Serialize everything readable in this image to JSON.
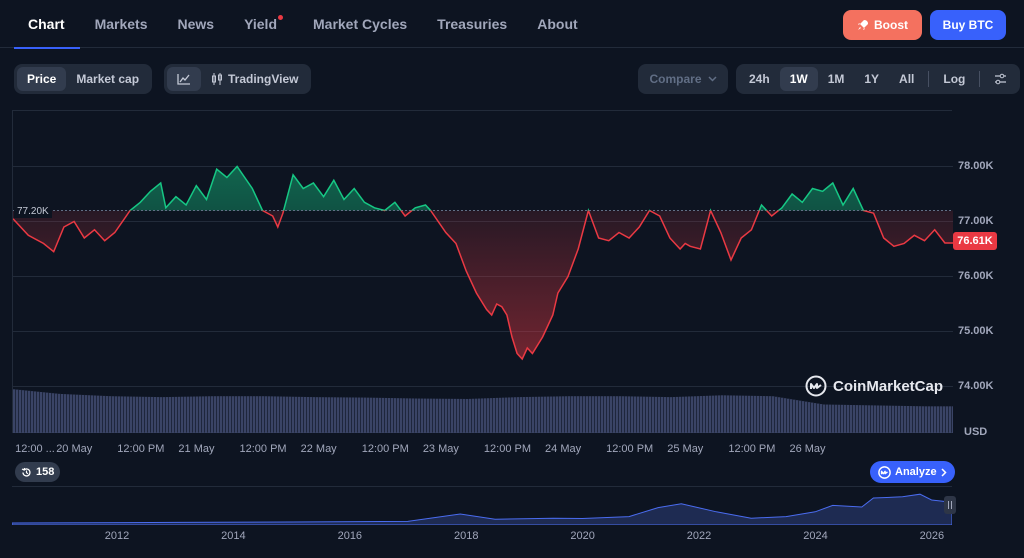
{
  "nav": {
    "tabs": [
      {
        "label": "Chart",
        "active": true
      },
      {
        "label": "Markets"
      },
      {
        "label": "News"
      },
      {
        "label": "Yield",
        "dot": true
      },
      {
        "label": "Market Cycles"
      },
      {
        "label": "Treasuries"
      },
      {
        "label": "About"
      }
    ],
    "boost_label": "Boost",
    "buy_label": "Buy BTC"
  },
  "toolbar": {
    "price_label": "Price",
    "market_cap_label": "Market cap",
    "tradingview_label": "TradingView",
    "compare_label": "Compare",
    "ranges": [
      "24h",
      "1W",
      "1M",
      "1Y",
      "All"
    ],
    "active_range": "1W",
    "log_label": "Log"
  },
  "chart": {
    "reference_price_label": "77.20K",
    "last_price_label": "76.61K",
    "watermark": "CoinMarketCap",
    "volume_unit": "USD",
    "colors": {
      "up": "#16c784",
      "down": "#ea3943",
      "volume": "#3a4466",
      "accent": "#3861fb"
    }
  },
  "chart_data": {
    "type": "area",
    "title": "",
    "xlabel": "",
    "ylabel": "",
    "baseline": 77.2,
    "ylim": [
      73.5,
      78.7
    ],
    "y_ticks": [
      "78.00K",
      "77.00K",
      "76.00K",
      "75.00K",
      "74.00K"
    ],
    "y_tick_values": [
      78,
      77,
      76,
      75,
      74
    ],
    "x_ticks": [
      "12:00 ...",
      "20 May",
      "12:00 PM",
      "21 May",
      "12:00 PM",
      "22 May",
      "12:00 PM",
      "23 May",
      "12:00 PM",
      "24 May",
      "12:00 PM",
      "25 May",
      "12:00 PM",
      "26 May"
    ],
    "x_tick_hours": [
      12,
      24,
      36,
      48,
      60,
      72,
      84,
      96,
      108,
      120,
      132,
      144,
      156,
      168
    ],
    "x_range_hours": [
      11,
      195.6
    ],
    "series": [
      {
        "values_hours": [
          11,
          14,
          17,
          19,
          21,
          23,
          25,
          27,
          29,
          31,
          34,
          36,
          38,
          40,
          41,
          43,
          45,
          47,
          49,
          51,
          53,
          55,
          58,
          60,
          62,
          63,
          64,
          66,
          68,
          70,
          72,
          74,
          76,
          78,
          80,
          82,
          84,
          86,
          88,
          90,
          92,
          93,
          96,
          98,
          100,
          102,
          104,
          105,
          106,
          107,
          108,
          109,
          110,
          111,
          112,
          113,
          115,
          116,
          117,
          118,
          120,
          122,
          124,
          126,
          128,
          130,
          132,
          134,
          136,
          138,
          140,
          142,
          143,
          144,
          146,
          148,
          150,
          152,
          154,
          156,
          158,
          160,
          162,
          164,
          166,
          168,
          170,
          172,
          174,
          176,
          178,
          180,
          182,
          184,
          186,
          188,
          190,
          192,
          194,
          195.6
        ],
        "values": [
          77.05,
          76.75,
          76.6,
          76.45,
          76.9,
          77.0,
          76.7,
          76.85,
          76.65,
          76.8,
          77.2,
          77.35,
          77.55,
          77.7,
          77.25,
          77.45,
          77.3,
          77.65,
          77.4,
          77.95,
          77.8,
          78.0,
          77.6,
          77.2,
          77.1,
          76.9,
          77.15,
          77.85,
          77.6,
          77.7,
          77.45,
          77.75,
          77.4,
          77.6,
          77.35,
          77.25,
          77.2,
          77.35,
          77.1,
          77.25,
          77.3,
          77.2,
          76.8,
          76.6,
          76.1,
          75.7,
          75.4,
          75.3,
          75.5,
          75.45,
          75.3,
          74.9,
          74.6,
          74.5,
          74.7,
          74.6,
          74.9,
          75.1,
          75.3,
          75.7,
          76.0,
          76.5,
          77.2,
          76.7,
          76.65,
          76.8,
          76.7,
          76.9,
          77.2,
          77.1,
          76.7,
          76.5,
          76.6,
          76.55,
          76.5,
          77.2,
          76.8,
          76.3,
          76.7,
          76.85,
          77.3,
          77.1,
          77.25,
          77.5,
          77.35,
          77.6,
          77.55,
          77.7,
          77.3,
          77.6,
          77.2,
          77.15,
          76.7,
          76.55,
          76.6,
          76.75,
          76.65,
          76.85,
          76.61,
          76.61
        ]
      }
    ],
    "volume": {
      "values_hours": [
        11,
        20,
        30,
        40,
        50,
        60,
        70,
        80,
        90,
        100,
        110,
        120,
        130,
        140,
        150,
        160,
        170,
        180,
        190,
        195.6
      ],
      "values": [
        0.95,
        0.85,
        0.8,
        0.78,
        0.8,
        0.8,
        0.78,
        0.77,
        0.75,
        0.74,
        0.78,
        0.8,
        0.8,
        0.78,
        0.82,
        0.8,
        0.62,
        0.6,
        0.58,
        0.58
      ]
    },
    "navigator": {
      "x_ticks": [
        "2012",
        "2014",
        "2016",
        "2018",
        "2020",
        "2022",
        "2024",
        "2026"
      ],
      "x_tick_years": [
        2012,
        2014,
        2016,
        2018,
        2020,
        2022,
        2024,
        2026
      ],
      "x_range_years": [
        2010.2,
        2026.35
      ],
      "years": [
        2010.2,
        2013,
        2015,
        2017.0,
        2017.9,
        2018.5,
        2019.5,
        2020.0,
        2020.8,
        2021.3,
        2021.7,
        2022.3,
        2022.9,
        2023.5,
        2024.0,
        2024.3,
        2024.8,
        2025.0,
        2025.5,
        2025.8,
        2026.0,
        2026.35
      ],
      "values": [
        0.0,
        0.02,
        0.03,
        0.05,
        0.28,
        0.12,
        0.15,
        0.14,
        0.2,
        0.48,
        0.6,
        0.35,
        0.15,
        0.2,
        0.35,
        0.55,
        0.5,
        0.78,
        0.82,
        0.9,
        0.72,
        0.65
      ]
    }
  }
}
